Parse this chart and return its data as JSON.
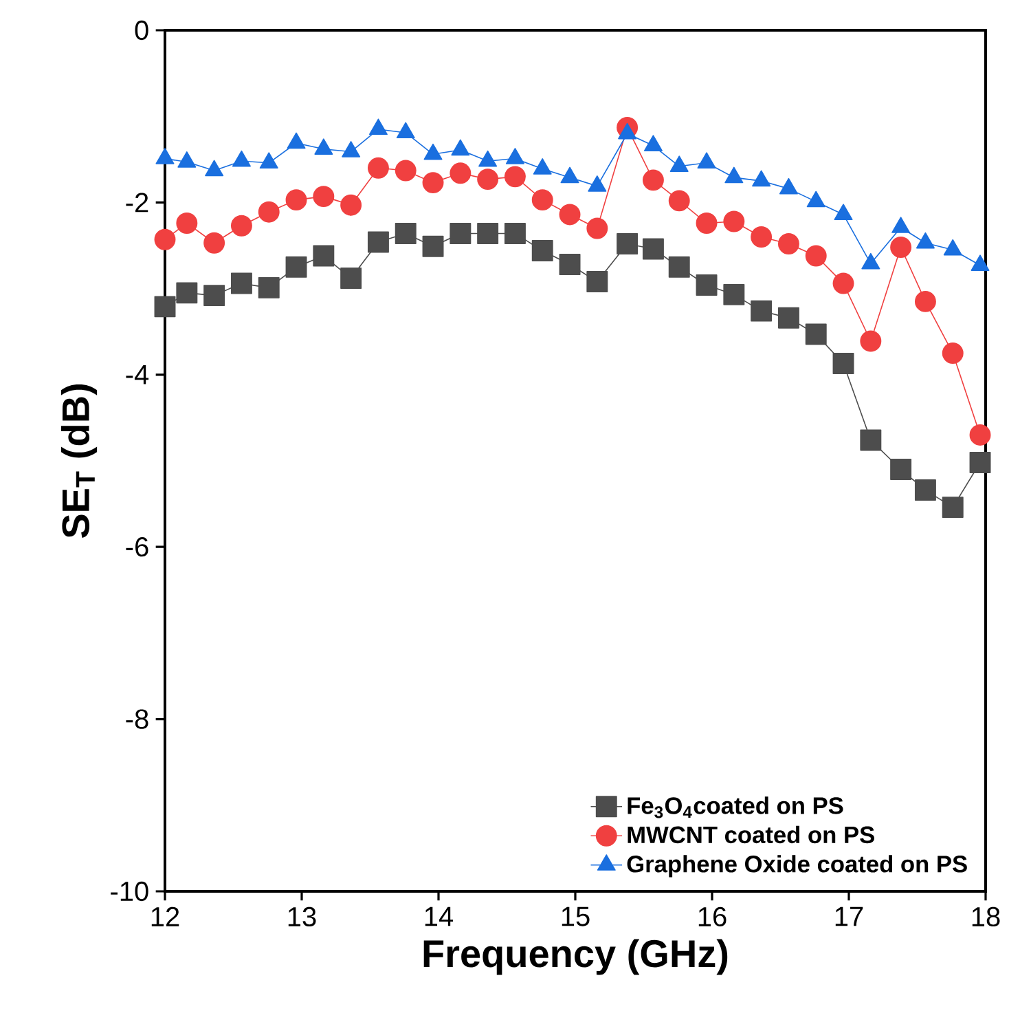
{
  "chart_data": {
    "type": "line",
    "xlabel": "Frequency (GHz)",
    "ylabel": "SE$_{T}$ (dB)",
    "x": [
      12.0,
      12.16,
      12.36,
      12.56,
      12.76,
      12.96,
      13.16,
      13.36,
      13.56,
      13.76,
      13.96,
      14.16,
      14.36,
      14.56,
      14.76,
      14.96,
      15.16,
      15.38,
      15.57,
      15.76,
      15.96,
      16.16,
      16.36,
      16.56,
      16.76,
      16.96,
      17.16,
      17.38,
      17.56,
      17.76,
      17.96
    ],
    "series": [
      {
        "name": "Fe$_{3}$O$_{4}$coated on PS",
        "color": "#4d4d4d",
        "marker": "square",
        "values": [
          -3.21,
          -3.05,
          -3.08,
          -2.94,
          -2.99,
          -2.75,
          -2.62,
          -2.88,
          -2.46,
          -2.36,
          -2.51,
          -2.36,
          -2.36,
          -2.36,
          -2.56,
          -2.72,
          -2.92,
          -2.48,
          -2.54,
          -2.75,
          -2.96,
          -3.07,
          -3.26,
          -3.34,
          -3.53,
          -3.87,
          -4.76,
          -5.1,
          -5.34,
          -5.54,
          -5.02
        ]
      },
      {
        "name": "MWCNT coated on PS",
        "color": "#f04040",
        "marker": "circle",
        "values": [
          -2.43,
          -2.24,
          -2.47,
          -2.27,
          -2.11,
          -1.97,
          -1.93,
          -2.03,
          -1.6,
          -1.63,
          -1.77,
          -1.66,
          -1.73,
          -1.7,
          -1.97,
          -2.14,
          -2.3,
          -1.13,
          -1.74,
          -1.98,
          -2.24,
          -2.22,
          -2.4,
          -2.48,
          -2.62,
          -2.94,
          -3.61,
          -2.52,
          -3.15,
          -3.75,
          -4.7
        ]
      },
      {
        "name": "Graphene Oxide coated on PS",
        "color": "#1a6fdf",
        "marker": "triangle",
        "values": [
          -1.49,
          -1.53,
          -1.63,
          -1.52,
          -1.54,
          -1.31,
          -1.38,
          -1.41,
          -1.15,
          -1.19,
          -1.44,
          -1.39,
          -1.52,
          -1.49,
          -1.61,
          -1.71,
          -1.81,
          -1.2,
          -1.34,
          -1.58,
          -1.54,
          -1.71,
          -1.75,
          -1.84,
          -1.99,
          -2.14,
          -2.71,
          -2.29,
          -2.47,
          -2.55,
          -2.73
        ]
      }
    ],
    "xlim": [
      12,
      18
    ],
    "ylim": [
      -10,
      0
    ],
    "xticks": [
      12,
      13,
      14,
      15,
      16,
      17,
      18
    ],
    "yticks": [
      -10,
      -8,
      -6,
      -4,
      -2,
      0
    ],
    "legend": "bottom right",
    "line_style": "solid"
  }
}
